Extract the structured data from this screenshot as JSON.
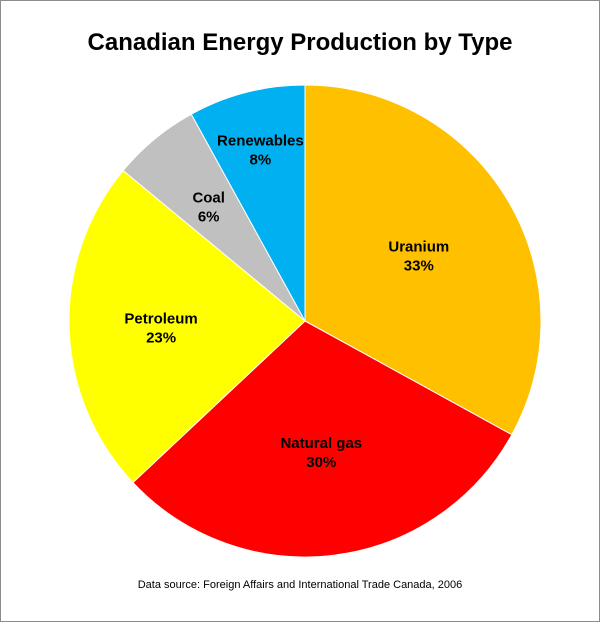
{
  "chart_data": {
    "type": "pie",
    "title": "Canadian Energy Production by Type",
    "start_angle_deg": 0,
    "direction": "clockwise",
    "slices": [
      {
        "label": "Uranium",
        "value": 33,
        "value_text": "33%",
        "color": "#FFC000"
      },
      {
        "label": "Natural gas",
        "value": 30,
        "value_text": "30%",
        "color": "#FF0000"
      },
      {
        "label": "Petroleum",
        "value": 23,
        "value_text": "23%",
        "color": "#FFFF00"
      },
      {
        "label": "Coal",
        "value": 6,
        "value_text": "6%",
        "color": "#C0C0C0"
      },
      {
        "label": "Renewables",
        "value": 8,
        "value_text": "8%",
        "color": "#00B0F0"
      }
    ]
  },
  "source_note": "Data source: Foreign Affairs and International Trade Canada, 2006"
}
